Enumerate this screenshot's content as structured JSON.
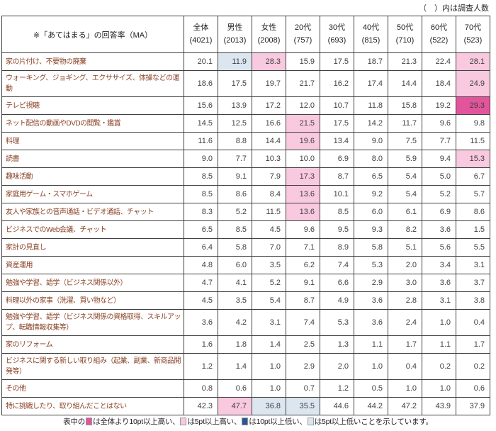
{
  "note": "（　）内は調査人数",
  "chart_data": {
    "type": "table",
    "title": "※「あてはまる」の回答率（MA）",
    "columns": [
      {
        "label": "全体",
        "count": "(4021)"
      },
      {
        "label": "男性",
        "count": "(2013)"
      },
      {
        "label": "女性",
        "count": "(2008)"
      },
      {
        "label": "20代",
        "count": "(757)"
      },
      {
        "label": "30代",
        "count": "(693)"
      },
      {
        "label": "40代",
        "count": "(815)"
      },
      {
        "label": "50代",
        "count": "(710)"
      },
      {
        "label": "60代",
        "count": "(522)"
      },
      {
        "label": "70代",
        "count": "(523)"
      }
    ],
    "rows": [
      {
        "label": "家の片付け、不要物の廃棄",
        "values": [
          "20.1",
          "11.9",
          "28.3",
          "15.9",
          "17.5",
          "18.7",
          "21.3",
          "22.4",
          "28.1"
        ],
        "highlights": [
          "",
          "low5",
          "high5",
          "",
          "",
          "",
          "",
          "",
          "high5"
        ]
      },
      {
        "label": "ウォーキング、ジョギング、エクササイズ、体操などの運動",
        "values": [
          "18.6",
          "17.5",
          "19.7",
          "21.7",
          "16.2",
          "17.4",
          "14.4",
          "18.4",
          "24.9"
        ],
        "highlights": [
          "",
          "",
          "",
          "",
          "",
          "",
          "",
          "",
          "high5"
        ]
      },
      {
        "label": "テレビ視聴",
        "values": [
          "15.6",
          "13.9",
          "17.2",
          "12.0",
          "10.7",
          "11.8",
          "15.8",
          "19.2",
          "29.3"
        ],
        "highlights": [
          "",
          "",
          "",
          "",
          "",
          "",
          "",
          "",
          "high10"
        ]
      },
      {
        "label": "ネット配信の動画やDVDの閲覧・鑑賞",
        "values": [
          "14.5",
          "12.5",
          "16.6",
          "21.5",
          "17.5",
          "14.2",
          "11.7",
          "9.6",
          "9.8"
        ],
        "highlights": [
          "",
          "",
          "",
          "high5",
          "",
          "",
          "",
          "",
          ""
        ]
      },
      {
        "label": "料理",
        "values": [
          "11.6",
          "8.8",
          "14.4",
          "19.6",
          "13.4",
          "9.0",
          "7.5",
          "7.7",
          "11.5"
        ],
        "highlights": [
          "",
          "",
          "",
          "high5",
          "",
          "",
          "",
          "",
          ""
        ]
      },
      {
        "label": "読書",
        "values": [
          "9.0",
          "7.7",
          "10.3",
          "10.0",
          "6.9",
          "8.0",
          "5.9",
          "9.4",
          "15.3"
        ],
        "highlights": [
          "",
          "",
          "",
          "",
          "",
          "",
          "",
          "",
          "high5"
        ]
      },
      {
        "label": "趣味活動",
        "values": [
          "8.5",
          "9.1",
          "7.9",
          "17.3",
          "8.7",
          "6.5",
          "5.4",
          "5.0",
          "6.7"
        ],
        "highlights": [
          "",
          "",
          "",
          "high5",
          "",
          "",
          "",
          "",
          ""
        ]
      },
      {
        "label": "家庭用ゲーム・スマホゲーム",
        "values": [
          "8.5",
          "8.6",
          "8.4",
          "13.6",
          "10.1",
          "9.2",
          "5.4",
          "5.2",
          "5.7"
        ],
        "highlights": [
          "",
          "",
          "",
          "high5",
          "",
          "",
          "",
          "",
          ""
        ]
      },
      {
        "label": "友人や家族との音声通話・ビデオ通話、チャット",
        "values": [
          "8.3",
          "5.2",
          "11.5",
          "13.6",
          "8.5",
          "6.0",
          "6.1",
          "6.9",
          "8.6"
        ],
        "highlights": [
          "",
          "",
          "",
          "high5",
          "",
          "",
          "",
          "",
          ""
        ]
      },
      {
        "label": "ビジネスでのWeb会議、チャット",
        "values": [
          "6.5",
          "8.5",
          "4.5",
          "9.6",
          "9.5",
          "9.3",
          "8.2",
          "3.6",
          "1.5"
        ],
        "highlights": [
          "",
          "",
          "",
          "",
          "",
          "",
          "",
          "",
          ""
        ]
      },
      {
        "label": "家計の見直し",
        "values": [
          "6.4",
          "5.8",
          "7.0",
          "7.1",
          "8.9",
          "5.8",
          "5.1",
          "5.6",
          "5.5"
        ],
        "highlights": [
          "",
          "",
          "",
          "",
          "",
          "",
          "",
          "",
          ""
        ]
      },
      {
        "label": "資産運用",
        "values": [
          "4.8",
          "6.0",
          "3.5",
          "6.2",
          "7.4",
          "5.3",
          "2.0",
          "3.4",
          "3.1"
        ],
        "highlights": [
          "",
          "",
          "",
          "",
          "",
          "",
          "",
          "",
          ""
        ]
      },
      {
        "label": "勉強や学習、語学（ビジネス関係以外）",
        "values": [
          "4.7",
          "4.1",
          "5.2",
          "9.1",
          "6.6",
          "2.9",
          "3.0",
          "3.6",
          "3.7"
        ],
        "highlights": [
          "",
          "",
          "",
          "",
          "",
          "",
          "",
          "",
          ""
        ]
      },
      {
        "label": "料理以外の家事（洗濯、買い物など）",
        "values": [
          "4.5",
          "3.5",
          "5.4",
          "8.7",
          "4.9",
          "3.6",
          "2.8",
          "3.1",
          "3.8"
        ],
        "highlights": [
          "",
          "",
          "",
          "",
          "",
          "",
          "",
          "",
          ""
        ]
      },
      {
        "label": "勉強や学習、語学（ビジネス関係の資格取得、スキルアップ、転職情報収集等）",
        "values": [
          "3.6",
          "4.2",
          "3.1",
          "7.4",
          "5.3",
          "3.6",
          "2.4",
          "1.0",
          "0.4"
        ],
        "highlights": [
          "",
          "",
          "",
          "",
          "",
          "",
          "",
          "",
          ""
        ]
      },
      {
        "label": "家のリフォーム",
        "values": [
          "1.6",
          "1.8",
          "1.4",
          "2.5",
          "1.3",
          "1.1",
          "1.7",
          "1.1",
          "1.7"
        ],
        "highlights": [
          "",
          "",
          "",
          "",
          "",
          "",
          "",
          "",
          ""
        ]
      },
      {
        "label": "ビジネスに関する新しい取り組み（起業、副業、新商品開発等）",
        "values": [
          "1.2",
          "1.4",
          "1.0",
          "2.9",
          "2.0",
          "1.0",
          "0.4",
          "0.2",
          "0.2"
        ],
        "highlights": [
          "",
          "",
          "",
          "",
          "",
          "",
          "",
          "",
          ""
        ]
      },
      {
        "label": "その他",
        "values": [
          "0.8",
          "0.6",
          "1.0",
          "0.7",
          "1.2",
          "0.5",
          "1.0",
          "1.0",
          "0.6"
        ],
        "highlights": [
          "",
          "",
          "",
          "",
          "",
          "",
          "",
          "",
          ""
        ]
      },
      {
        "label": "特に挑戦したり、取り組んだことはない",
        "values": [
          "42.3",
          "47.7",
          "36.8",
          "35.5",
          "44.6",
          "44.2",
          "47.2",
          "43.9",
          "37.9"
        ],
        "highlights": [
          "",
          "high5",
          "low5",
          "low5",
          "",
          "",
          "",
          "",
          ""
        ]
      }
    ]
  },
  "legend": {
    "prefix": "表中の",
    "items": [
      {
        "key": "high10",
        "text": "は全体より10pt以上高い、"
      },
      {
        "key": "high5",
        "text": "は5pt以上高い、"
      },
      {
        "key": "low10",
        "text": "は10pt以上低い、"
      },
      {
        "key": "low5",
        "text": "は5pt以上低いことを示しています。"
      }
    ]
  },
  "colors": {
    "high10": "#e2559c",
    "high5": "#f8c9df",
    "low10": "#2f5597",
    "low5": "#dce6f1"
  }
}
